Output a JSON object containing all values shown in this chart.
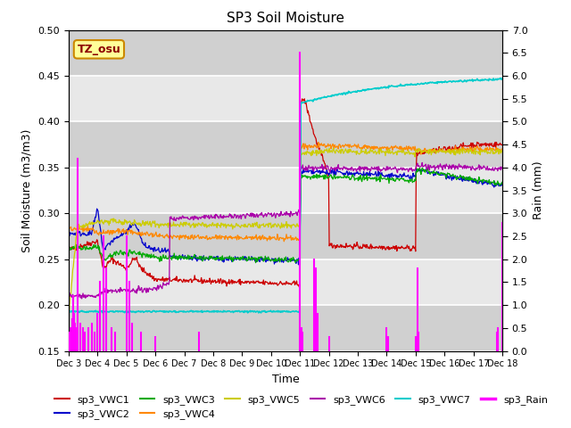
{
  "title": "SP3 Soil Moisture",
  "ylabel_left": "Soil Moisture (m3/m3)",
  "ylabel_right": "Rain (mm)",
  "xlabel": "Time",
  "ylim_left": [
    0.15,
    0.5
  ],
  "ylim_right": [
    0.0,
    7.0
  ],
  "yticks_left": [
    0.15,
    0.2,
    0.25,
    0.3,
    0.35,
    0.4,
    0.45,
    0.5
  ],
  "yticks_right": [
    0.0,
    0.5,
    1.0,
    1.5,
    2.0,
    2.5,
    3.0,
    3.5,
    4.0,
    4.5,
    5.0,
    5.5,
    6.0,
    6.5,
    7.0
  ],
  "colors": {
    "sp3_VWC1": "#cc0000",
    "sp3_VWC2": "#0000cc",
    "sp3_VWC3": "#00aa00",
    "sp3_VWC4": "#ff8800",
    "sp3_VWC5": "#cccc00",
    "sp3_VWC6": "#aa00aa",
    "sp3_VWC7": "#00cccc",
    "sp3_Rain": "#ff00ff"
  },
  "tz_osu_box": {
    "text": "TZ_osu",
    "facecolor": "#ffff99",
    "edgecolor": "#cc8800"
  },
  "plot_bg_color": "#e8e8e8",
  "band_color": "#d0d0d0",
  "grid_color": "#ffffff",
  "x_labels": [
    "Dec 3",
    "Dec 4",
    "Dec 5",
    "Dec 6",
    "Dec 7",
    "Dec 8",
    "Dec 9",
    "Dec 10",
    "Dec 11",
    "Dec 12",
    "Dec 13",
    "Dec 14",
    "Dec 15",
    "Dec 16",
    "Dec 17",
    "Dec 18"
  ],
  "legend_order": [
    "sp3_VWC1",
    "sp3_VWC2",
    "sp3_VWC3",
    "sp3_VWC4",
    "sp3_VWC5",
    "sp3_VWC6",
    "sp3_VWC7",
    "sp3_Rain"
  ]
}
